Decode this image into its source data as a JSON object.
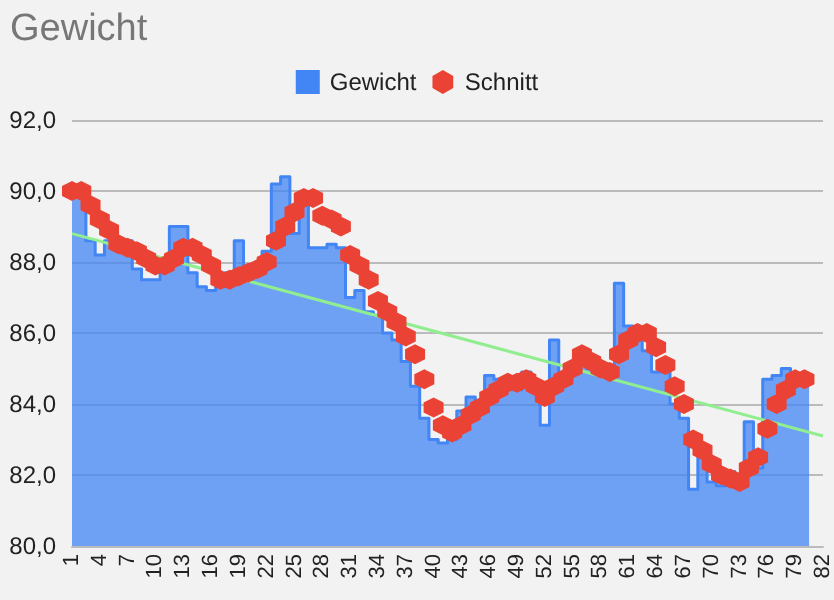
{
  "chart_data": {
    "type": "area",
    "title": "Gewicht",
    "categories": [
      "1",
      null,
      null,
      "4",
      null,
      null,
      "7",
      null,
      null,
      "10",
      null,
      null,
      "13",
      null,
      null,
      "16",
      null,
      null,
      "19",
      null,
      null,
      "22",
      null,
      null,
      "25",
      null,
      null,
      "28",
      null,
      null,
      "31",
      null,
      null,
      "34",
      null,
      null,
      "37",
      null,
      null,
      "40",
      null,
      null,
      "43",
      null,
      null,
      "46",
      null,
      null,
      "49",
      null,
      null,
      "52",
      null,
      null,
      "55",
      null,
      null,
      "58",
      null,
      null,
      "61",
      null,
      null,
      "64",
      null,
      null,
      "67",
      null,
      null,
      "70",
      null,
      null,
      "73",
      null,
      null,
      "76",
      null,
      null,
      "79",
      null,
      null,
      "82"
    ],
    "series": [
      {
        "name": "Gewicht",
        "color": "#4285f4",
        "values": [
          90.0,
          89.9,
          88.6,
          88.2,
          88.6,
          88.4,
          88.6,
          87.8,
          87.5,
          87.5,
          88.0,
          89.0,
          89.0,
          87.7,
          87.3,
          87.2,
          87.3,
          87.7,
          88.6,
          87.5,
          87.7,
          88.3,
          90.2,
          90.4,
          88.8,
          89.6,
          88.4,
          88.4,
          88.5,
          88.4,
          87.0,
          87.2,
          86.6,
          86.5,
          86.0,
          85.8,
          85.2,
          84.5,
          83.6,
          83.0,
          82.9,
          83.0,
          83.8,
          84.2,
          84.0,
          84.8,
          84.7,
          84.6,
          84.4,
          84.9,
          84.4,
          83.4,
          85.8,
          84.8,
          84.9,
          85.2,
          85.0,
          84.9,
          85.0,
          87.4,
          86.2,
          86.1,
          85.5,
          84.9,
          85.2,
          84.0,
          83.6,
          81.6,
          82.8,
          81.8,
          81.7,
          82.1,
          81.8,
          83.5,
          82.2,
          84.7,
          84.8,
          85.0,
          84.6,
          84.7,
          null,
          null
        ]
      },
      {
        "name": "Schnitt",
        "type": "scatter",
        "color": "#ea4335",
        "values": [
          90.0,
          90.0,
          89.6,
          89.2,
          88.9,
          88.5,
          88.4,
          88.3,
          88.1,
          87.9,
          87.9,
          88.1,
          88.4,
          88.4,
          88.2,
          87.9,
          87.5,
          87.5,
          87.6,
          87.7,
          87.8,
          88.0,
          88.6,
          89.0,
          89.4,
          89.8,
          89.8,
          89.3,
          89.2,
          89.0,
          88.2,
          87.9,
          87.5,
          86.9,
          86.6,
          86.3,
          85.9,
          85.4,
          84.7,
          83.9,
          83.4,
          83.2,
          83.4,
          83.7,
          83.9,
          84.2,
          84.4,
          84.6,
          84.6,
          84.7,
          84.5,
          84.2,
          84.5,
          84.7,
          85.0,
          85.4,
          85.2,
          85.0,
          84.9,
          85.4,
          85.8,
          86.0,
          86.0,
          85.6,
          85.1,
          84.5,
          84.0,
          83.0,
          82.7,
          82.3,
          82.0,
          81.9,
          81.8,
          82.2,
          82.5,
          83.3,
          84.0,
          84.4,
          84.7,
          84.7,
          null,
          null
        ]
      },
      {
        "type": "line",
        "color": "#90ee90",
        "x": [
          "1",
          "82"
        ],
        "values": [
          88.8,
          83.1
        ]
      }
    ],
    "ylim": [
      80,
      92
    ],
    "yticks": [
      {
        "value": 80,
        "label": "80,0"
      },
      {
        "value": 82,
        "label": "82,0"
      },
      {
        "value": 84,
        "label": "84,0"
      },
      {
        "value": 86,
        "label": "86,0"
      },
      {
        "value": 88,
        "label": "88,0"
      },
      {
        "value": 90,
        "label": "90,0"
      },
      {
        "value": 92,
        "label": "92,0"
      }
    ],
    "grid": "y",
    "legend": "top"
  }
}
